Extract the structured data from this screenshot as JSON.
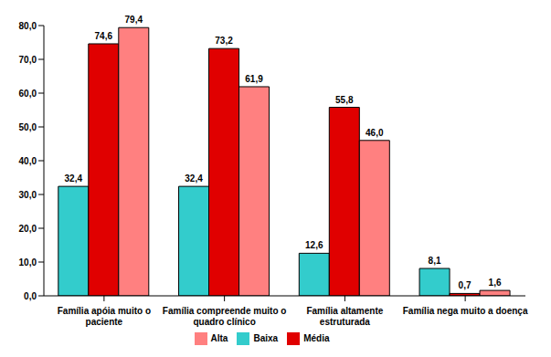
{
  "chart_data": {
    "type": "bar",
    "categories": [
      "Família apóia muito o paciente",
      "Família compreende muito o quadro clínico",
      "Família altamente estruturada",
      "Família nega muito a doença"
    ],
    "series": [
      {
        "name": "Baixa",
        "color": "#33CCCC",
        "values": [
          32.4,
          32.4,
          12.6,
          8.1
        ],
        "value_labels": [
          "32,4",
          "32,4",
          "12,6",
          "8,1"
        ]
      },
      {
        "name": "Média",
        "color": "#E00000",
        "values": [
          74.6,
          73.2,
          55.8,
          0.7
        ],
        "value_labels": [
          "74,6",
          "73,2",
          "55,8",
          "0,7"
        ]
      },
      {
        "name": "Alta",
        "color": "#FF8080",
        "values": [
          79.4,
          61.9,
          46.0,
          1.6
        ],
        "value_labels": [
          "79,4",
          "61,9",
          "46,0",
          "1,6"
        ]
      }
    ],
    "ylim": [
      0,
      80
    ],
    "yticks": [
      {
        "value": 0,
        "label": "0,0"
      },
      {
        "value": 10,
        "label": "10,0"
      },
      {
        "value": 20,
        "label": "20,0"
      },
      {
        "value": 30,
        "label": "30,0"
      },
      {
        "value": 40,
        "label": "40,0"
      },
      {
        "value": 50,
        "label": "50,0"
      },
      {
        "value": 60,
        "label": "60,0"
      },
      {
        "value": 70,
        "label": "70,0"
      },
      {
        "value": 80,
        "label": "80,0"
      }
    ],
    "grid": false,
    "legend": "bottom",
    "data_labels": true
  }
}
